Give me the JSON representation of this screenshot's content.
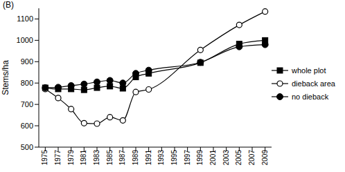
{
  "chart_data": {
    "type": "line",
    "title": "(B)",
    "y_label": "Stems/ha",
    "x": [
      1975,
      1977,
      1979,
      1981,
      1983,
      1985,
      1987,
      1989,
      1991,
      1999,
      2005,
      2009
    ],
    "xlim": [
      1974,
      2010
    ],
    "xticks": [
      1975,
      1977,
      1979,
      1981,
      1983,
      1985,
      1987,
      1989,
      1991,
      1993,
      1995,
      1997,
      1999,
      2001,
      2003,
      2005,
      2007,
      2009
    ],
    "ylim": [
      500,
      1150
    ],
    "yticks": [
      500,
      600,
      700,
      800,
      900,
      1000,
      1100
    ],
    "grid": false,
    "legend": "right",
    "series": [
      {
        "name": "whole plot",
        "color": "#000000",
        "marker": "square",
        "values": [
          778,
          772,
          772,
          768,
          778,
          785,
          775,
          828,
          845,
          895,
          983,
          1000
        ]
      },
      {
        "name": "dieback area",
        "color": "#000000",
        "marker": "open_circle",
        "values": [
          772,
          730,
          678,
          612,
          610,
          640,
          625,
          758,
          770,
          955,
          1072,
          1135
        ]
      },
      {
        "name": "no dieback",
        "color": "#000000",
        "marker": "circle",
        "values": [
          778,
          780,
          788,
          795,
          805,
          812,
          800,
          845,
          860,
          897,
          970,
          980
        ]
      }
    ]
  }
}
